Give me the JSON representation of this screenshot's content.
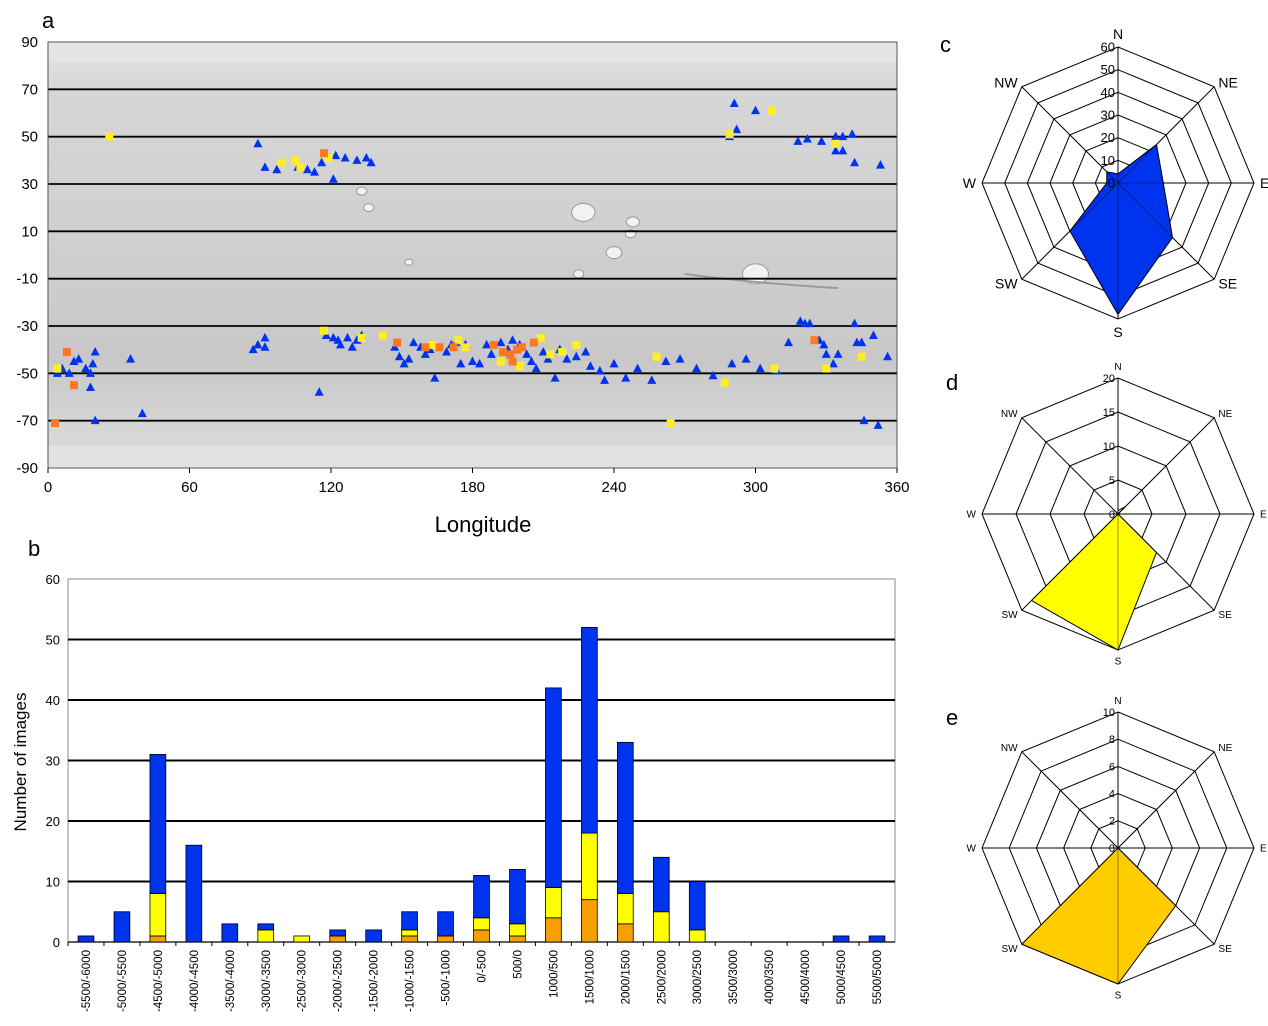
{
  "panels": {
    "a": {
      "label": "a"
    },
    "b": {
      "label": "b"
    },
    "c": {
      "label": "c"
    },
    "d": {
      "label": "d"
    },
    "e": {
      "label": "e"
    }
  },
  "colors": {
    "blue": "#0033ee",
    "yellow": "#ffff00",
    "orange": "#f5a000",
    "gold": "#ffcc00",
    "map_marker_yellow": "#ffee22",
    "map_marker_orange": "#ff7722"
  },
  "chart_data": [
    {
      "type": "scatter",
      "panel": "a",
      "xlabel": "Longitude",
      "ylabel": "",
      "xlim": [
        0,
        360
      ],
      "ylim": [
        -90,
        90
      ],
      "x_ticks": [
        "0",
        "60",
        "120",
        "180",
        "240",
        "300",
        "360"
      ],
      "y_ticks": [
        "90",
        "70",
        "50",
        "30",
        "10",
        "-10",
        "-30",
        "-50",
        "-70",
        "-90"
      ],
      "series": [
        {
          "marker": "triangle",
          "color": "#0033ee",
          "points": [
            [
              89,
              47
            ],
            [
              92,
              37
            ],
            [
              97,
              36
            ],
            [
              106,
              37
            ],
            [
              110,
              36
            ],
            [
              113,
              35
            ],
            [
              116,
              39
            ],
            [
              122,
              42
            ],
            [
              126,
              41
            ],
            [
              131,
              40
            ],
            [
              135,
              41
            ],
            [
              137,
              39
            ],
            [
              121,
              32
            ],
            [
              291,
              64
            ],
            [
              300,
              61
            ],
            [
              292,
              53
            ],
            [
              289,
              50
            ],
            [
              318,
              48
            ],
            [
              322,
              49
            ],
            [
              328,
              48
            ],
            [
              334,
              50
            ],
            [
              337,
              50
            ],
            [
              341,
              51
            ],
            [
              337,
              44
            ],
            [
              342,
              39
            ],
            [
              353,
              38
            ],
            [
              334,
              44
            ],
            [
              4,
              -50
            ],
            [
              6,
              -48
            ],
            [
              9,
              -50
            ],
            [
              11,
              -45
            ],
            [
              13,
              -44
            ],
            [
              16,
              -48
            ],
            [
              18,
              -50
            ],
            [
              19,
              -46
            ],
            [
              18,
              -56
            ],
            [
              20,
              -41
            ],
            [
              20,
              -70
            ],
            [
              35,
              -44
            ],
            [
              40,
              -67
            ],
            [
              87,
              -40
            ],
            [
              89,
              -38
            ],
            [
              92,
              -35
            ],
            [
              92,
              -39
            ],
            [
              115,
              -58
            ],
            [
              118,
              -34
            ],
            [
              121,
              -35
            ],
            [
              123,
              -36
            ],
            [
              124,
              -38
            ],
            [
              127,
              -35
            ],
            [
              129,
              -39
            ],
            [
              131,
              -36
            ],
            [
              133,
              -34
            ],
            [
              147,
              -39
            ],
            [
              149,
              -43
            ],
            [
              151,
              -46
            ],
            [
              153,
              -44
            ],
            [
              155,
              -37
            ],
            [
              158,
              -39
            ],
            [
              160,
              -42
            ],
            [
              162,
              -40
            ],
            [
              164,
              -52
            ],
            [
              169,
              -41
            ],
            [
              171,
              -38
            ],
            [
              173,
              -37
            ],
            [
              175,
              -46
            ],
            [
              177,
              -38
            ],
            [
              180,
              -45
            ],
            [
              183,
              -46
            ],
            [
              186,
              -38
            ],
            [
              188,
              -42
            ],
            [
              192,
              -37
            ],
            [
              195,
              -40
            ],
            [
              197,
              -36
            ],
            [
              200,
              -38
            ],
            [
              203,
              -42
            ],
            [
              205,
              -45
            ],
            [
              207,
              -48
            ],
            [
              210,
              -41
            ],
            [
              212,
              -44
            ],
            [
              215,
              -52
            ],
            [
              217,
              -40
            ],
            [
              220,
              -44
            ],
            [
              224,
              -43
            ],
            [
              228,
              -41
            ],
            [
              230,
              -47
            ],
            [
              234,
              -49
            ],
            [
              236,
              -53
            ],
            [
              240,
              -46
            ],
            [
              245,
              -52
            ],
            [
              250,
              -48
            ],
            [
              256,
              -53
            ],
            [
              262,
              -45
            ],
            [
              268,
              -44
            ],
            [
              275,
              -48
            ],
            [
              282,
              -51
            ],
            [
              290,
              -46
            ],
            [
              296,
              -44
            ],
            [
              302,
              -48
            ],
            [
              314,
              -37
            ],
            [
              319,
              -28
            ],
            [
              321,
              -29
            ],
            [
              323,
              -29
            ],
            [
              327,
              -36
            ],
            [
              329,
              -38
            ],
            [
              335,
              -42
            ],
            [
              342,
              -29
            ],
            [
              343,
              -37
            ],
            [
              345,
              -37
            ],
            [
              350,
              -34
            ],
            [
              346,
              -70
            ],
            [
              352,
              -72
            ],
            [
              356,
              -43
            ],
            [
              330,
              -42
            ],
            [
              333,
              -46
            ],
            [
              309,
              -49
            ]
          ]
        },
        {
          "marker": "square",
          "color": "#ffee22",
          "points": [
            [
              26,
              50
            ],
            [
              99,
              39
            ],
            [
              105,
              40
            ],
            [
              107,
              37
            ],
            [
              119,
              41
            ],
            [
              117,
              -32
            ],
            [
              133,
              -35
            ],
            [
              142,
              -34
            ],
            [
              163,
              -38
            ],
            [
              174,
              -36
            ],
            [
              177,
              -39
            ],
            [
              192,
              -45
            ],
            [
              200,
              -47
            ],
            [
              209,
              -35
            ],
            [
              213,
              -42
            ],
            [
              218,
              -41
            ],
            [
              224,
              -38
            ],
            [
              258,
              -43
            ],
            [
              264,
              -71
            ],
            [
              287,
              -54
            ],
            [
              308,
              -48
            ],
            [
              330,
              -48
            ],
            [
              345,
              -43
            ],
            [
              307,
              61
            ],
            [
              289,
              51
            ],
            [
              334,
              47
            ],
            [
              4,
              -48
            ],
            [
              3,
              -71
            ]
          ]
        },
        {
          "marker": "square",
          "color": "#ff7722",
          "points": [
            [
              117,
              43
            ],
            [
              148,
              -37
            ],
            [
              160,
              -39
            ],
            [
              166,
              -39
            ],
            [
              172,
              -39
            ],
            [
              189,
              -38
            ],
            [
              193,
              -41
            ],
            [
              196,
              -42
            ],
            [
              199,
              -40
            ],
            [
              201,
              -39
            ],
            [
              206,
              -37
            ],
            [
              197,
              -45
            ],
            [
              325,
              -36
            ],
            [
              8,
              -41
            ],
            [
              11,
              -55
            ],
            [
              3,
              -71
            ]
          ]
        }
      ]
    },
    {
      "type": "bar",
      "stacked": true,
      "panel": "b",
      "ylabel": "Number of images",
      "xlabel": "",
      "ylim": [
        0,
        60
      ],
      "y_ticks": [
        "0",
        "10",
        "20",
        "30",
        "40",
        "50",
        "60"
      ],
      "categories": [
        "-5500/-6000",
        "-5000/-5500",
        "-4500/-5000",
        "-4000/-4500",
        "-3500/-4000",
        "-3000/-3500",
        "-2500/-3000",
        "-2000/-2500",
        "-1500/-2000",
        "-1000/-1500",
        "-500/-1000",
        "0/-500",
        "500/0",
        "1000/500",
        "1500/1000",
        "2000/1500",
        "2500/2000",
        "3000/2500",
        "3500/3000",
        "4000/3500",
        "4500/4000",
        "5000/4500",
        "5500/5000"
      ],
      "series": [
        {
          "color": "#f5a000",
          "values": [
            0,
            0,
            1,
            0,
            0,
            0,
            0,
            1,
            0,
            1,
            1,
            2,
            1,
            4,
            7,
            3,
            0,
            0,
            0,
            0,
            0,
            0,
            0
          ]
        },
        {
          "color": "#ffff00",
          "values": [
            0,
            0,
            7,
            0,
            0,
            2,
            1,
            0,
            0,
            1,
            0,
            2,
            2,
            5,
            11,
            5,
            5,
            2,
            0,
            0,
            0,
            0,
            0
          ]
        },
        {
          "color": "#0033ee",
          "values": [
            1,
            5,
            23,
            16,
            3,
            1,
            0,
            1,
            2,
            3,
            4,
            7,
            9,
            33,
            34,
            25,
            9,
            8,
            0,
            0,
            0,
            1,
            1
          ]
        }
      ]
    },
    {
      "type": "radar",
      "panel": "c",
      "color": "#0033ee",
      "directions": [
        "N",
        "NE",
        "E",
        "SE",
        "S",
        "SW",
        "W",
        "NW"
      ],
      "rmax": 60,
      "rings": [
        0,
        10,
        20,
        30,
        40,
        50,
        60
      ],
      "values": [
        4,
        24,
        20,
        34,
        58,
        30,
        5,
        7
      ]
    },
    {
      "type": "radar",
      "panel": "d",
      "color": "#ffff00",
      "directions": [
        "N",
        "NE",
        "E",
        "SE",
        "S",
        "SW",
        "W",
        "NW"
      ],
      "rmax": 20,
      "rings": [
        0,
        5,
        10,
        15,
        20
      ],
      "values": [
        0.5,
        1.5,
        0,
        8,
        20,
        18,
        0,
        0
      ]
    },
    {
      "type": "radar",
      "panel": "e",
      "color": "#ffcc00",
      "directions": [
        "N",
        "NE",
        "E",
        "SE",
        "S",
        "SW",
        "W",
        "NW"
      ],
      "rmax": 10,
      "rings": [
        0,
        2,
        4,
        6,
        8,
        10
      ],
      "values": [
        0,
        0,
        0,
        6,
        10,
        10,
        0,
        0
      ]
    }
  ]
}
